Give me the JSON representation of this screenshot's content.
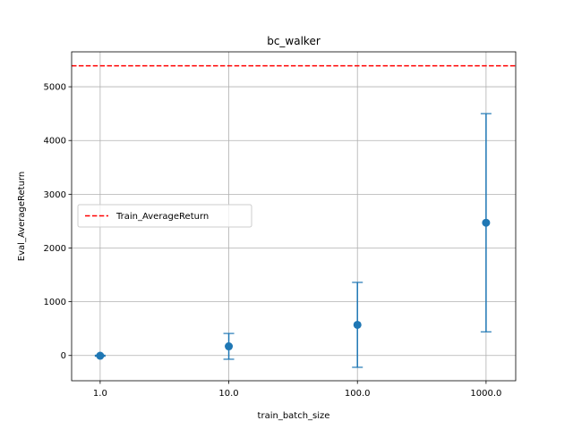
{
  "chart_data": {
    "type": "scatter",
    "title": "bc_walker",
    "xlabel": "train_batch_size",
    "ylabel": "Eval_AverageReturn",
    "x_scale": "log",
    "x_ticks": [
      "1.0",
      "10.0",
      "100.0",
      "1000.0"
    ],
    "y_ticks": [
      0,
      1000,
      2000,
      3000,
      4000,
      5000
    ],
    "xlim": [
      0.6,
      1700
    ],
    "ylim": [
      -470,
      5650
    ],
    "grid": true,
    "legend_position": "center-left",
    "series": [
      {
        "name": "",
        "color": "#1f77b4",
        "x": [
          1,
          10,
          100,
          1000
        ],
        "y": [
          -5,
          170,
          570,
          2470
        ],
        "y_err": [
          10,
          240,
          790,
          2030
        ]
      }
    ],
    "reference_line": {
      "name": "Train_AverageReturn",
      "y": 5390,
      "color": "#ff0000",
      "style": "dashed"
    }
  }
}
